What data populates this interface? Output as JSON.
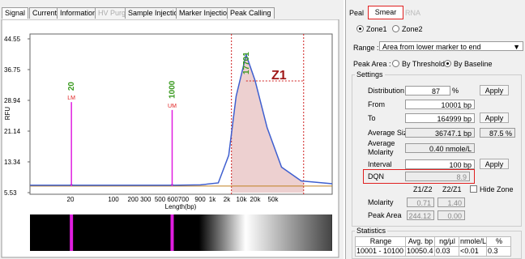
{
  "left_tabs": [
    "Signal",
    "Current",
    "Information",
    "HV Purge",
    "Sample Injection",
    "Marker Injection",
    "Peak Calling"
  ],
  "chart_data": {
    "type": "line",
    "ylabel": "RFU",
    "xlabel": "Length(bp)",
    "ylim": [
      5.53,
      44.55
    ],
    "yticks": [
      44.55,
      36.75,
      28.94,
      21.14,
      13.34,
      5.53
    ],
    "xscale": "log",
    "xlim": [
      4,
      500000
    ],
    "xtick_labels": [
      "20",
      "100",
      "200 300",
      "500 600700",
      "900",
      "1k",
      "2k",
      "10k",
      "20k",
      "50k"
    ],
    "trace": {
      "color": "#3f5fcf",
      "x": [
        4,
        19,
        20,
        21,
        950,
        1000,
        1050,
        3000,
        6000,
        9000,
        12000,
        17701,
        25000,
        40000,
        70000,
        150000,
        500000
      ],
      "y": [
        7.4,
        7.4,
        7.6,
        7.4,
        7.4,
        7.6,
        7.4,
        7.5,
        8,
        15,
        30,
        40.5,
        34,
        22,
        12,
        8.5,
        7.8
      ]
    },
    "markers": [
      {
        "bp": 20,
        "rfu": 28.5,
        "tag": "LM",
        "color": "#e01ee0"
      },
      {
        "bp": 1000,
        "rfu": 26.5,
        "tag": "UM",
        "color": "#e01ee0"
      }
    ],
    "peak": {
      "bp": 17701
    },
    "zone": {
      "label": "Z1",
      "from": 10001,
      "to": 164999,
      "color": "#e8c4c4"
    }
  },
  "right_panel": {
    "tabs": [
      "Peal",
      "Smear",
      "RNA"
    ],
    "zones": [
      "Zone1",
      "Zone2"
    ],
    "range_label": "Range :",
    "range_value": "Area from lower marker to end",
    "peak_area_label": "Peak Area :",
    "peak_area_options": [
      "By Threshold",
      "By Baseline"
    ],
    "settings_title": "Settings",
    "apply": "Apply",
    "distribution_label": "Distribution",
    "distribution_value": "87",
    "distribution_unit": "%",
    "from_label": "From",
    "from_value": "10001 bp",
    "to_label": "To",
    "to_value": "164999 bp",
    "avg_size_label": "Average Size",
    "avg_size_value": "36747.1 bp",
    "avg_size_pct": "87.5 %",
    "avg_molarity_label": "Average Molarity",
    "avg_molarity_value": "0.40 nmole/L",
    "interval_label": "Interval",
    "interval_value": "100 bp",
    "dqn_label": "DQN",
    "dqn_value": "8.9",
    "ratio_headers": [
      "Z1/Z2",
      "Z2/Z1"
    ],
    "hide_zone": "Hide Zone",
    "molarity_label": "Molarity",
    "molarity_values": [
      "0.71",
      "1.40"
    ],
    "peak_area_row_label": "Peak Area",
    "peak_area_values": [
      "244.12",
      "0.00"
    ],
    "statistics_title": "Statistics",
    "stats_headers": [
      "Range",
      "Avg. bp",
      "ng/µl",
      "nmole/L",
      "%"
    ],
    "stats_row": [
      "10001 - 10100",
      "10050.4",
      "0.03",
      "<0.01",
      "0.3"
    ]
  }
}
